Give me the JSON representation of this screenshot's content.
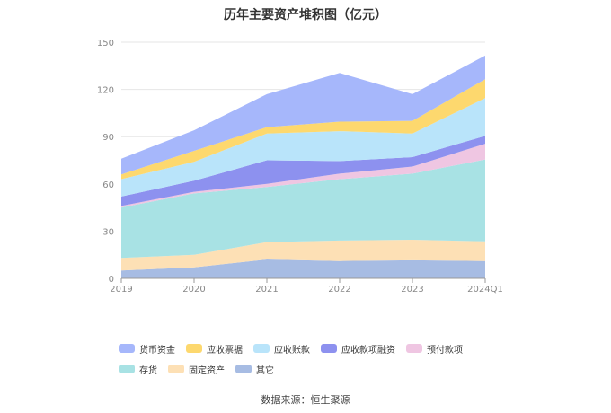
{
  "title": "历年主要资产堆积图（亿元）",
  "source": "数据来源：恒生聚源",
  "colors": {
    "货币资金": "#a6b7fb",
    "应收票据": "#fdd86e",
    "应收账款": "#b9e4fa",
    "应收款项融资": "#8d91ef",
    "预付款项": "#efc6e2",
    "存货": "#a8e2e4",
    "固定资产": "#fde0b5",
    "其它": "#a7bce3"
  },
  "chart_data": {
    "type": "area",
    "stacked": true,
    "title": "历年主要资产堆积图（亿元）",
    "categories": [
      "2019",
      "2020",
      "2021",
      "2022",
      "2023",
      "2024Q1"
    ],
    "ylim": [
      0,
      150
    ],
    "yticks": [
      0,
      30,
      60,
      90,
      120,
      150
    ],
    "grid": true,
    "legend_position": "bottom",
    "series": [
      {
        "name": "其它",
        "values": [
          5,
          7,
          12,
          11,
          11.5,
          11
        ]
      },
      {
        "name": "固定资产",
        "values": [
          8,
          8,
          11,
          13,
          13,
          12.5
        ]
      },
      {
        "name": "存货",
        "values": [
          32,
          39,
          35,
          39,
          42,
          52
        ]
      },
      {
        "name": "预付款项",
        "values": [
          1,
          1,
          2,
          3.5,
          4.5,
          10
        ]
      },
      {
        "name": "应收款项融资",
        "values": [
          6,
          7,
          15,
          8,
          6,
          5
        ]
      },
      {
        "name": "应收账款",
        "values": [
          11,
          12,
          17,
          19,
          15,
          24
        ]
      },
      {
        "name": "应收票据",
        "values": [
          3,
          7,
          4,
          6,
          8,
          12
        ]
      },
      {
        "name": "货币资金",
        "values": [
          10,
          13,
          21,
          31,
          17,
          15
        ]
      }
    ],
    "legend_order": [
      "货币资金",
      "应收票据",
      "应收账款",
      "应收款项融资",
      "预付款项",
      "存货",
      "固定资产",
      "其它"
    ]
  }
}
